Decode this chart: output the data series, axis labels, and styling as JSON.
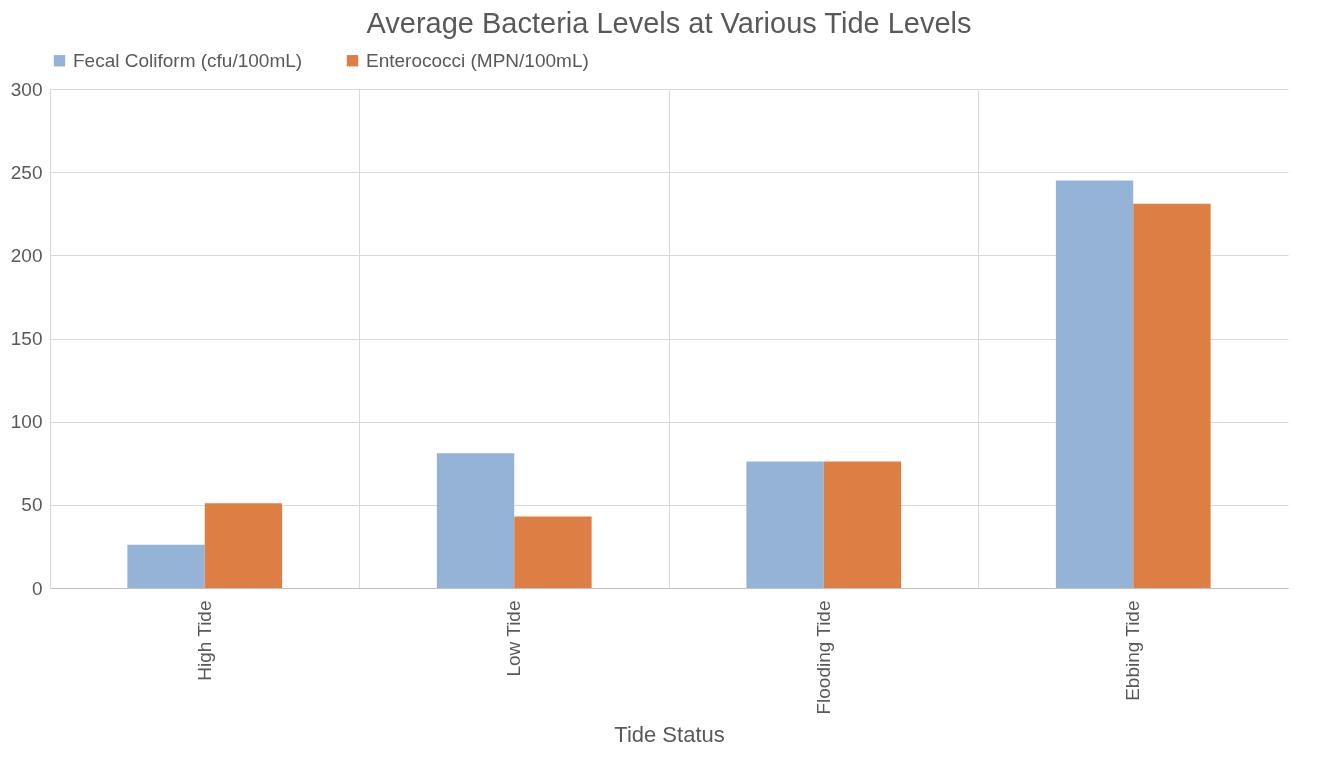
{
  "chart_data": {
    "type": "bar",
    "title": "Average Bacteria Levels at Various Tide Levels",
    "xlabel": "Tide Status",
    "categories": [
      "High Tide",
      "Low Tide",
      "Flooding Tide",
      "Ebbing Tide"
    ],
    "series": [
      {
        "name": "Fecal Coliform (cfu/100mL)",
        "color": "#95b3d7",
        "values": [
          26,
          81,
          76,
          245
        ]
      },
      {
        "name": "Enterococci (MPN/100mL)",
        "color": "#dd7f45",
        "values": [
          51,
          43,
          76,
          231
        ]
      }
    ],
    "ylim": [
      0,
      300
    ],
    "yticks": [
      0,
      50,
      100,
      150,
      200,
      250,
      300
    ],
    "grid": true,
    "legend": "top"
  }
}
